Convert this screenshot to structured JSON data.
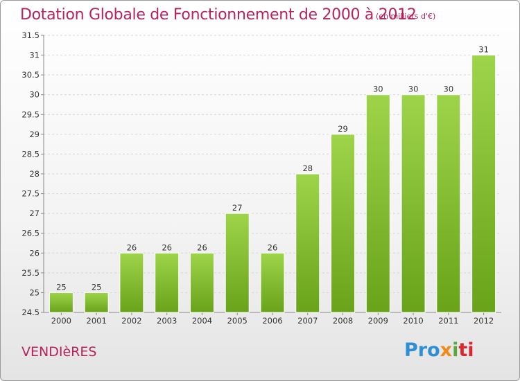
{
  "title": "Dotation Globale de Fonctionnement de 2000 à 2012",
  "subtitle": "(en milliers d'€)",
  "commune": "VENDIèRES",
  "logo": {
    "part1": "Pro",
    "part2": "x",
    "part3": "i",
    "part4": "ti"
  },
  "colors": {
    "bar_top": "#9ed44a",
    "bar_bottom": "#6aa51c",
    "title": "#b5245d"
  },
  "chart_data": {
    "type": "bar",
    "categories": [
      "2000",
      "2001",
      "2002",
      "2003",
      "2004",
      "2005",
      "2006",
      "2007",
      "2008",
      "2009",
      "2010",
      "2011",
      "2012"
    ],
    "values": [
      25,
      25,
      26,
      26,
      26,
      27,
      26,
      28,
      29,
      30,
      30,
      30,
      31
    ],
    "ylim": [
      24.5,
      31.5
    ],
    "yticks": [
      "24.5",
      "25",
      "25.5",
      "26",
      "26.5",
      "27",
      "27.5",
      "28",
      "28.5",
      "29",
      "29.5",
      "30",
      "30.5",
      "31",
      "31.5"
    ],
    "grid": true
  }
}
